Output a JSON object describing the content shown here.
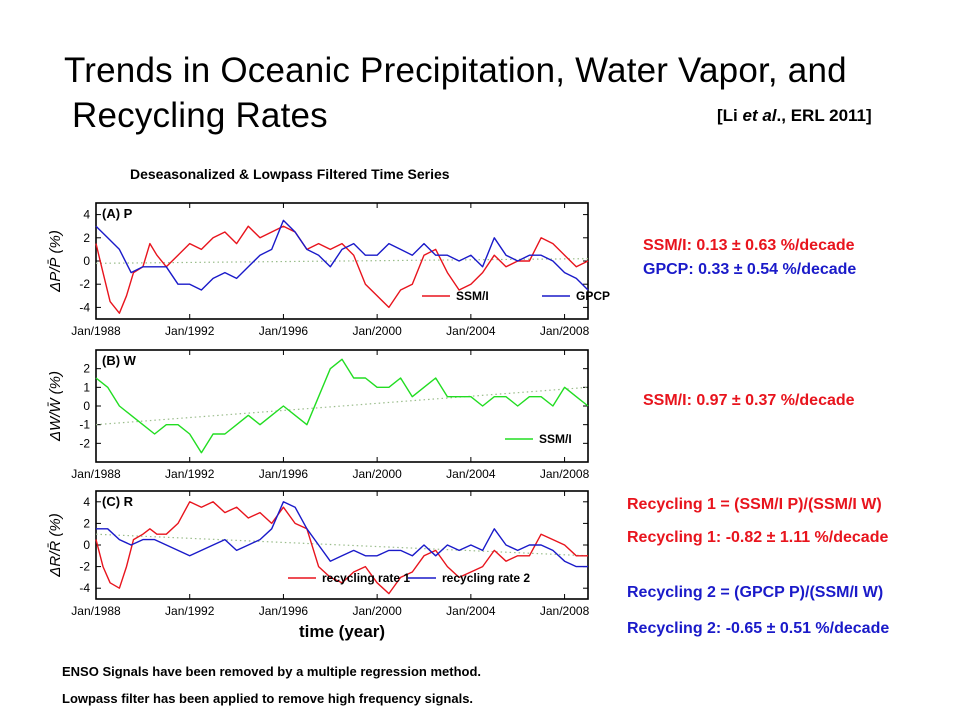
{
  "title_line1": "Trends in Oceanic Precipitation, Water Vapor, and",
  "title_line2": "Recycling Rates",
  "citation_open": "[Li ",
  "citation_etal": "et al",
  "citation_close": "., ERL 2011]",
  "subtitle": "Deseasonalized & Lowpass Filtered  Time Series",
  "stats": {
    "p_ssmi": "SSM/I: 0.13 ± 0.63 %/decade",
    "p_gpcp": "GPCP: 0.33 ± 0.54 %/decade",
    "w_ssmi": "SSM/I: 0.97 ± 0.37 %/decade",
    "rec1_def": "Recycling 1 = (SSM/I P)/(SSM/I W)",
    "rec1_trend": "Recycling 1: -0.82 ± 1.11 %/decade",
    "rec2_def": "Recycling 2 = (GPCP P)/(SSM/I W)",
    "rec2_trend": "Recycling 2: -0.65 ± 0.51 %/decade"
  },
  "notes": {
    "enso": "ENSO Signals have been removed by a multiple regression method.",
    "lowpass": "Lowpass filter has been applied to remove high frequency signals."
  },
  "colors": {
    "red": "#e8141d",
    "blue": "#1a1ac9",
    "green": "#22dd22",
    "trend": "#9bbd8c"
  },
  "chart_data": [
    {
      "type": "line",
      "panel_label": "(A) P",
      "ylabel": "ΔP/P̄ (%)",
      "xlabel": "",
      "xlim": [
        1988,
        2009
      ],
      "ylim": [
        -5,
        5
      ],
      "yticks": [
        -4,
        -2,
        0,
        2,
        4
      ],
      "xtick_values": [
        1988,
        1992,
        1996,
        2000,
        2004,
        2008
      ],
      "xtick_labels": [
        "Jan/1988",
        "Jan/1992",
        "Jan/1996",
        "Jan/2000",
        "Jan/2004",
        "Jan/2008"
      ],
      "trend": [
        [
          1988,
          -0.2
        ],
        [
          2009,
          0.2
        ]
      ],
      "series": [
        {
          "name": "SSM/I",
          "color": "#e8141d",
          "x": [
            1988.0,
            1988.3,
            1988.6,
            1989.0,
            1989.3,
            1989.6,
            1990.0,
            1990.3,
            1990.6,
            1991.0,
            1991.5,
            1992.0,
            1992.5,
            1993.0,
            1993.5,
            1994.0,
            1994.5,
            1995.0,
            1995.5,
            1996.0,
            1996.5,
            1997.0,
            1997.5,
            1998.0,
            1998.5,
            1999.0,
            1999.5,
            2000.0,
            2000.5,
            2001.0,
            2001.5,
            2002.0,
            2002.5,
            2003.0,
            2003.5,
            2004.0,
            2004.5,
            2005.0,
            2005.5,
            2006.0,
            2006.5,
            2007.0,
            2007.5,
            2008.0,
            2008.5,
            2009.0
          ],
          "y": [
            1.5,
            -1.0,
            -3.5,
            -4.5,
            -3.0,
            -1.0,
            -0.5,
            1.5,
            0.5,
            -0.5,
            0.5,
            1.5,
            1.0,
            2.0,
            2.5,
            1.5,
            3.0,
            2.0,
            2.5,
            3.0,
            2.5,
            1.0,
            1.5,
            1.0,
            1.5,
            0.5,
            -2.0,
            -3.0,
            -4.0,
            -2.5,
            -2.0,
            0.5,
            1.0,
            -1.0,
            -2.5,
            -2.0,
            -1.0,
            0.5,
            -0.5,
            0.0,
            0.0,
            2.0,
            1.5,
            0.5,
            -0.5,
            0.0
          ]
        },
        {
          "name": "GPCP",
          "color": "#1a1ac9",
          "x": [
            1988.0,
            1988.5,
            1989.0,
            1989.5,
            1990.0,
            1990.5,
            1991.0,
            1991.5,
            1992.0,
            1992.5,
            1993.0,
            1993.5,
            1994.0,
            1994.5,
            1995.0,
            1995.5,
            1996.0,
            1996.5,
            1997.0,
            1997.5,
            1998.0,
            1998.5,
            1999.0,
            1999.5,
            2000.0,
            2000.5,
            2001.0,
            2001.5,
            2002.0,
            2002.5,
            2003.0,
            2003.5,
            2004.0,
            2004.5,
            2005.0,
            2005.5,
            2006.0,
            2006.5,
            2007.0,
            2007.5,
            2008.0,
            2008.5,
            2009.0
          ],
          "y": [
            3.0,
            2.0,
            1.0,
            -1.0,
            -0.5,
            -0.5,
            -0.5,
            -2.0,
            -2.0,
            -2.5,
            -1.5,
            -1.0,
            -1.5,
            -0.5,
            0.5,
            1.0,
            3.5,
            2.5,
            1.0,
            0.5,
            -0.5,
            1.0,
            1.5,
            0.5,
            0.5,
            1.5,
            1.0,
            0.5,
            1.5,
            0.5,
            0.5,
            0.0,
            0.5,
            -0.5,
            2.0,
            0.5,
            0.0,
            0.5,
            0.5,
            0.0,
            -1.0,
            -1.5,
            -2.5
          ]
        }
      ]
    },
    {
      "type": "line",
      "panel_label": "(B) W",
      "ylabel": "ΔW/W̄ (%)",
      "xlabel": "",
      "xlim": [
        1988,
        2009
      ],
      "ylim": [
        -3,
        3
      ],
      "yticks": [
        -2,
        -1,
        0,
        1,
        2
      ],
      "xtick_values": [
        1988,
        1992,
        1996,
        2000,
        2004,
        2008
      ],
      "xtick_labels": [
        "Jan/1988",
        "Jan/1992",
        "Jan/1996",
        "Jan/2000",
        "Jan/2004",
        "Jan/2008"
      ],
      "trend": [
        [
          1988,
          -1.0
        ],
        [
          2009,
          1.0
        ]
      ],
      "series": [
        {
          "name": "SSM/I",
          "color": "#22dd22",
          "x": [
            1988.0,
            1988.5,
            1989.0,
            1989.5,
            1990.0,
            1990.5,
            1991.0,
            1991.5,
            1992.0,
            1992.5,
            1993.0,
            1993.5,
            1994.0,
            1994.5,
            1995.0,
            1995.5,
            1996.0,
            1996.5,
            1997.0,
            1997.5,
            1998.0,
            1998.5,
            1999.0,
            1999.5,
            2000.0,
            2000.5,
            2001.0,
            2001.5,
            2002.0,
            2002.5,
            2003.0,
            2003.5,
            2004.0,
            2004.5,
            2005.0,
            2005.5,
            2006.0,
            2006.5,
            2007.0,
            2007.5,
            2008.0,
            2008.5,
            2009.0
          ],
          "y": [
            1.5,
            1.0,
            0.0,
            -0.5,
            -1.0,
            -1.5,
            -1.0,
            -1.0,
            -1.5,
            -2.5,
            -1.5,
            -1.5,
            -1.0,
            -0.5,
            -1.0,
            -0.5,
            0.0,
            -0.5,
            -1.0,
            0.5,
            2.0,
            2.5,
            1.5,
            1.5,
            1.0,
            1.0,
            1.5,
            0.5,
            1.0,
            1.5,
            0.5,
            0.5,
            0.5,
            0.0,
            0.5,
            0.5,
            0.0,
            0.5,
            0.5,
            0.0,
            1.0,
            0.5,
            0.0
          ]
        }
      ]
    },
    {
      "type": "line",
      "panel_label": "(C) R",
      "ylabel": "ΔR/R̄ (%)",
      "xlabel": "time (year)",
      "xlim": [
        1988,
        2009
      ],
      "ylim": [
        -5,
        5
      ],
      "yticks": [
        -4,
        -2,
        0,
        2,
        4
      ],
      "xtick_values": [
        1988,
        1992,
        1996,
        2000,
        2004,
        2008
      ],
      "xtick_labels": [
        "Jan/1988",
        "Jan/1992",
        "Jan/1996",
        "Jan/2000",
        "Jan/2004",
        "Jan/2008"
      ],
      "trend": [
        [
          1988,
          1.0
        ],
        [
          2009,
          -1.0
        ]
      ],
      "series": [
        {
          "name": "recycling rate 1",
          "color": "#e8141d",
          "x": [
            1988.0,
            1988.3,
            1988.6,
            1989.0,
            1989.3,
            1989.6,
            1990.0,
            1990.3,
            1990.6,
            1991.0,
            1991.5,
            1992.0,
            1992.5,
            1993.0,
            1993.5,
            1994.0,
            1994.5,
            1995.0,
            1995.5,
            1996.0,
            1996.5,
            1997.0,
            1997.5,
            1998.0,
            1998.5,
            1999.0,
            1999.5,
            2000.0,
            2000.5,
            2001.0,
            2001.5,
            2002.0,
            2002.5,
            2003.0,
            2003.5,
            2004.0,
            2004.5,
            2005.0,
            2005.5,
            2006.0,
            2006.5,
            2007.0,
            2007.5,
            2008.0,
            2008.5,
            2009.0
          ],
          "y": [
            0.5,
            -2.0,
            -3.5,
            -4.0,
            -2.0,
            0.5,
            1.0,
            1.5,
            1.0,
            1.0,
            2.0,
            4.0,
            3.5,
            4.0,
            3.0,
            3.5,
            2.5,
            3.0,
            2.0,
            3.5,
            2.0,
            1.5,
            -2.0,
            -3.0,
            -3.5,
            -2.5,
            -2.0,
            -3.5,
            -4.5,
            -3.0,
            -2.5,
            -1.0,
            -0.5,
            -2.0,
            -3.0,
            -2.5,
            -2.0,
            -0.5,
            -1.5,
            -1.0,
            -1.0,
            1.0,
            0.5,
            0.0,
            -1.0,
            -1.0
          ]
        },
        {
          "name": "recycling rate 2",
          "color": "#1a1ac9",
          "x": [
            1988.0,
            1988.5,
            1989.0,
            1989.5,
            1990.0,
            1990.5,
            1991.0,
            1991.5,
            1992.0,
            1992.5,
            1993.0,
            1993.5,
            1994.0,
            1994.5,
            1995.0,
            1995.5,
            1996.0,
            1996.5,
            1997.0,
            1997.5,
            1998.0,
            1998.5,
            1999.0,
            1999.5,
            2000.0,
            2000.5,
            2001.0,
            2001.5,
            2002.0,
            2002.5,
            2003.0,
            2003.5,
            2004.0,
            2004.5,
            2005.0,
            2005.5,
            2006.0,
            2006.5,
            2007.0,
            2007.5,
            2008.0,
            2008.5,
            2009.0
          ],
          "y": [
            1.5,
            1.5,
            0.5,
            0.0,
            0.5,
            0.5,
            0.0,
            -0.5,
            -1.0,
            -0.5,
            0.0,
            0.5,
            -0.5,
            0.0,
            0.5,
            1.5,
            4.0,
            3.5,
            1.5,
            0.0,
            -1.5,
            -1.0,
            -0.5,
            -1.0,
            -1.0,
            -0.5,
            -0.5,
            -1.0,
            0.0,
            -1.0,
            0.0,
            -0.5,
            0.0,
            -0.5,
            1.5,
            0.0,
            -0.5,
            0.0,
            0.0,
            -0.5,
            -1.5,
            -2.0,
            -2.0
          ]
        }
      ]
    }
  ]
}
